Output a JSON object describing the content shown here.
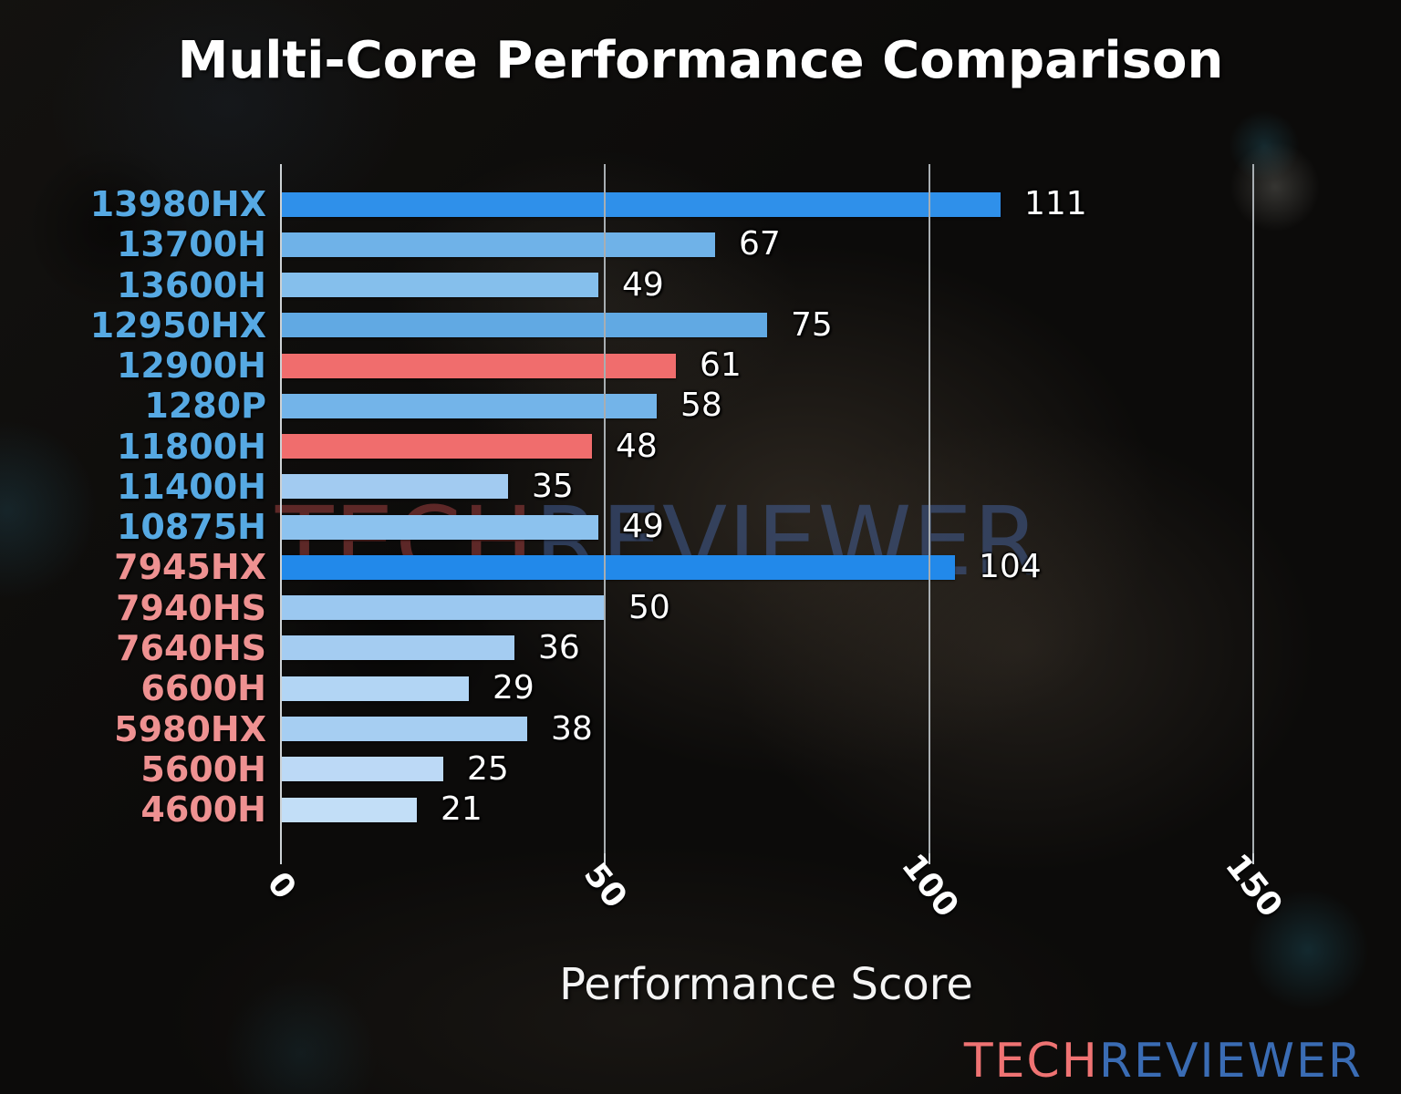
{
  "header": {
    "title": "Multi-Core Performance Comparison"
  },
  "watermark": {
    "text_left": "TECH",
    "text_right": "REVIEWER",
    "color_left": "rgba(160,64,64,0.55)",
    "color_right": "rgba(70,100,160,0.50)"
  },
  "logo": {
    "text_left": "TECH",
    "text_right": "REVIEWER",
    "color_left": "#ef7373",
    "color_right": "#3a6cb4"
  },
  "chart_data": {
    "type": "bar",
    "orientation": "horizontal",
    "title": "Multi-Core Performance Comparison",
    "xlabel": "Performance Score",
    "xlim": [
      0,
      157
    ],
    "xticks": [
      0,
      50,
      100,
      150
    ],
    "grid": true,
    "grid_color": "#a8aeb2",
    "spine_color": "#cdd2d5",
    "value_label_color": "#ffffff",
    "tick_label_color": "#ffffff",
    "categories": [
      "13980HX",
      "13700H",
      "13600H",
      "12950HX",
      "12900H",
      "1280P",
      "11800H",
      "11400H",
      "10875H",
      "7945HX",
      "7940HS",
      "7640HS",
      "6600H",
      "5980HX",
      "5600H",
      "4600H"
    ],
    "values": [
      111,
      67,
      49,
      75,
      61,
      58,
      48,
      35,
      49,
      104,
      50,
      36,
      29,
      38,
      25,
      21
    ],
    "rows": [
      {
        "label": "13980HX",
        "value": 111,
        "bar_color": "#2f90ea",
        "label_color": "#56a9e3"
      },
      {
        "label": "13700H",
        "value": 67,
        "bar_color": "#6fb2e8",
        "label_color": "#56a9e3"
      },
      {
        "label": "13600H",
        "value": 49,
        "bar_color": "#85bfec",
        "label_color": "#56a9e3"
      },
      {
        "label": "12950HX",
        "value": 75,
        "bar_color": "#61a9e3",
        "label_color": "#56a9e3"
      },
      {
        "label": "12900H",
        "value": 61,
        "bar_color": "#f06d6d",
        "label_color": "#56a9e3"
      },
      {
        "label": "1280P",
        "value": 58,
        "bar_color": "#73b4e9",
        "label_color": "#56a9e3"
      },
      {
        "label": "11800H",
        "value": 48,
        "bar_color": "#f06d6d",
        "label_color": "#56a9e3"
      },
      {
        "label": "11400H",
        "value": 35,
        "bar_color": "#a2cbf1",
        "label_color": "#56a9e3"
      },
      {
        "label": "10875H",
        "value": 49,
        "bar_color": "#8cc2ee",
        "label_color": "#56a9e3"
      },
      {
        "label": "7945HX",
        "value": 104,
        "bar_color": "#2289ea",
        "label_color": "#ee9191"
      },
      {
        "label": "7940HS",
        "value": 50,
        "bar_color": "#9bc8f0",
        "label_color": "#ee9191"
      },
      {
        "label": "7640HS",
        "value": 36,
        "bar_color": "#a4ccf1",
        "label_color": "#ee9191"
      },
      {
        "label": "6600H",
        "value": 29,
        "bar_color": "#b2d5f4",
        "label_color": "#ee9191"
      },
      {
        "label": "5980HX",
        "value": 38,
        "bar_color": "#a6cef2",
        "label_color": "#ee9191"
      },
      {
        "label": "5600H",
        "value": 25,
        "bar_color": "#bcd9f6",
        "label_color": "#ee9191"
      },
      {
        "label": "4600H",
        "value": 21,
        "bar_color": "#c2def7",
        "label_color": "#ee9191"
      }
    ]
  }
}
